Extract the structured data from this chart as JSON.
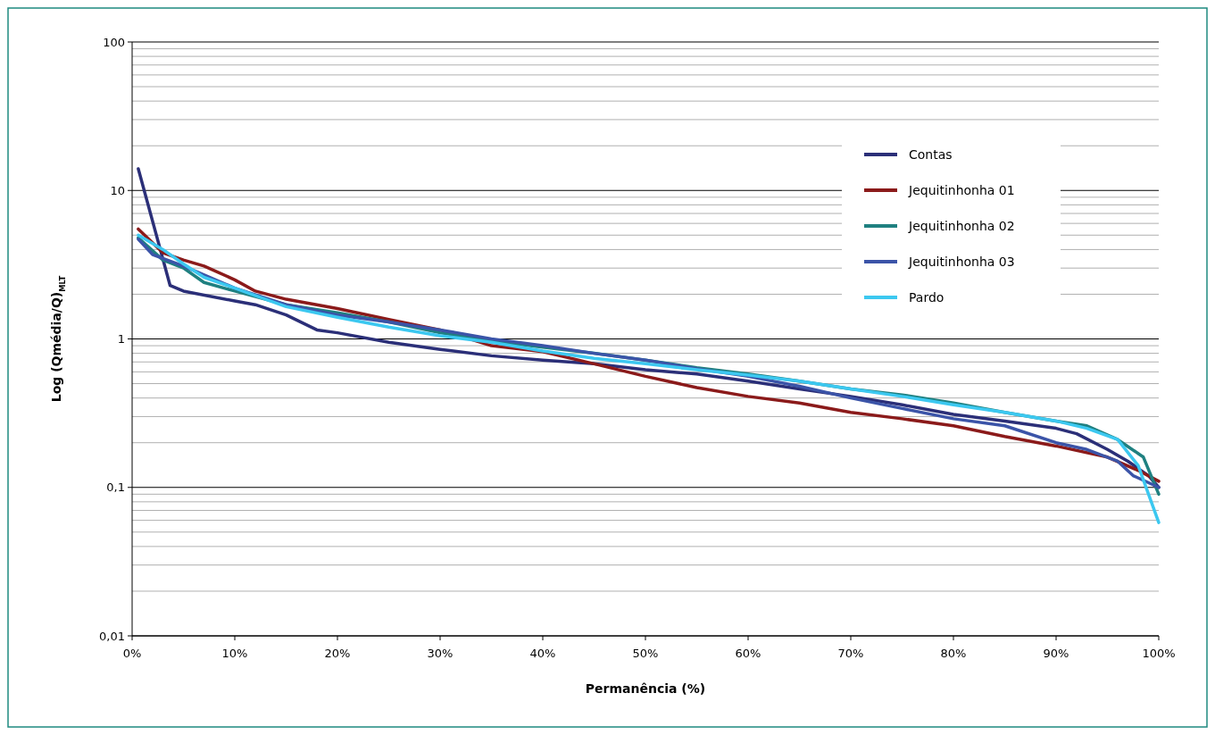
{
  "chart_data": {
    "type": "line",
    "xlabel": "Permanência (%)",
    "ylabel": "Log (Qmédia/Q)$_{MLT}$",
    "xlim": [
      0,
      100
    ],
    "xticks": [
      {
        "value": 0,
        "label": "0%"
      },
      {
        "value": 10,
        "label": "10%"
      },
      {
        "value": 20,
        "label": "20%"
      },
      {
        "value": 30,
        "label": "30%"
      },
      {
        "value": 40,
        "label": "40%"
      },
      {
        "value": 50,
        "label": "50%"
      },
      {
        "value": 60,
        "label": "60%"
      },
      {
        "value": 70,
        "label": "70%"
      },
      {
        "value": 80,
        "label": "80%"
      },
      {
        "value": 90,
        "label": "90%"
      },
      {
        "value": 100,
        "label": "100%"
      }
    ],
    "ylim": [
      0.01,
      100
    ],
    "yticks": [
      {
        "value": 0.01,
        "label": "0,01"
      },
      {
        "value": 0.1,
        "label": "0,1"
      },
      1,
      10,
      100
    ],
    "log": true,
    "grid": "y",
    "legend": "top right",
    "line_style": "solid",
    "marker": "none",
    "series": [
      {
        "name": "Contas",
        "color": "#2b2f78",
        "x": [
          0.6,
          3.7,
          5,
          10,
          12,
          15,
          18,
          20,
          25,
          30,
          35,
          40,
          45,
          50,
          55,
          60,
          65,
          70,
          75,
          80,
          85,
          90,
          92,
          95,
          97,
          99,
          100
        ],
        "values": [
          14,
          2.29,
          2.1,
          1.8,
          1.7,
          1.45,
          1.15,
          1.1,
          0.95,
          0.85,
          0.77,
          0.72,
          0.68,
          0.62,
          0.58,
          0.52,
          0.46,
          0.41,
          0.36,
          0.31,
          0.28,
          0.25,
          0.23,
          0.18,
          0.15,
          0.12,
          0.1
        ]
      },
      {
        "name": "Jequitinhonha 01",
        "color": "#8b1a1a",
        "x": [
          0.6,
          3,
          5,
          7,
          10,
          12,
          15,
          20,
          25,
          30,
          35,
          40,
          45,
          50,
          55,
          60,
          65,
          70,
          75,
          80,
          85,
          90,
          95,
          98,
          100
        ],
        "values": [
          5.5,
          3.8,
          3.4,
          3.1,
          2.5,
          2.1,
          1.85,
          1.6,
          1.35,
          1.15,
          0.9,
          0.82,
          0.68,
          0.56,
          0.47,
          0.41,
          0.37,
          0.32,
          0.29,
          0.26,
          0.22,
          0.19,
          0.16,
          0.13,
          0.11
        ]
      },
      {
        "name": "Jequitinhonha 02",
        "color": "#1f8080",
        "x": [
          0.6,
          3,
          5,
          7,
          10,
          15,
          20,
          25,
          30,
          35,
          40,
          45,
          50,
          55,
          60,
          65,
          70,
          75,
          80,
          85,
          90,
          93,
          96,
          98.5,
          100
        ],
        "values": [
          4.8,
          3.4,
          3.0,
          2.4,
          2.1,
          1.7,
          1.5,
          1.3,
          1.1,
          0.97,
          0.88,
          0.8,
          0.72,
          0.64,
          0.58,
          0.52,
          0.46,
          0.42,
          0.37,
          0.32,
          0.28,
          0.26,
          0.21,
          0.16,
          0.09
        ]
      },
      {
        "name": "Jequitinhonha 03",
        "color": "#3b54a8",
        "x": [
          0.6,
          2,
          5,
          10,
          15,
          20,
          25,
          30,
          35,
          40,
          45,
          50,
          55,
          60,
          65,
          70,
          75,
          80,
          85,
          90,
          93,
          96,
          97.5,
          100
        ],
        "values": [
          4.7,
          3.7,
          3.1,
          2.2,
          1.7,
          1.45,
          1.3,
          1.15,
          1.0,
          0.9,
          0.8,
          0.72,
          0.63,
          0.56,
          0.48,
          0.4,
          0.34,
          0.29,
          0.26,
          0.2,
          0.18,
          0.15,
          0.12,
          0.1
        ]
      },
      {
        "name": "Pardo",
        "color": "#3cc8f0",
        "x": [
          0.6,
          3,
          5,
          7,
          10,
          15,
          20,
          25,
          30,
          35,
          40,
          45,
          50,
          55,
          60,
          65,
          70,
          75,
          80,
          85,
          90,
          93,
          96,
          98,
          100
        ],
        "values": [
          5.0,
          4.0,
          3.2,
          2.6,
          2.2,
          1.65,
          1.4,
          1.2,
          1.05,
          0.95,
          0.83,
          0.74,
          0.68,
          0.62,
          0.57,
          0.52,
          0.46,
          0.41,
          0.36,
          0.32,
          0.28,
          0.25,
          0.21,
          0.14,
          0.058
        ]
      }
    ]
  }
}
